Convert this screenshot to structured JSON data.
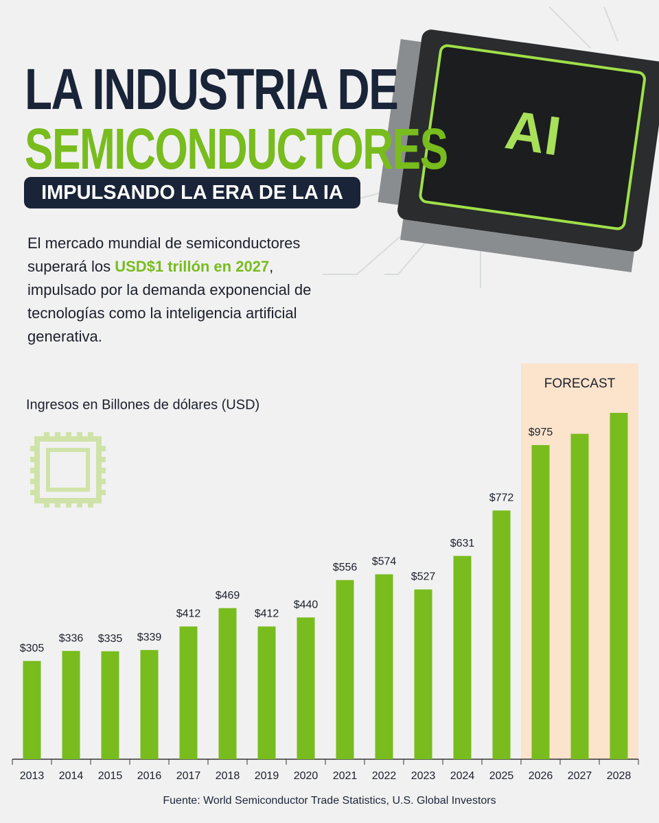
{
  "header": {
    "title_line1": "LA INDUSTRIA DE",
    "title_line2": "SEMICONDUCTORES",
    "subtitle": "IMPULSANDO LA ERA DE LA IA",
    "chip_label": "AI",
    "paragraph": [
      "El mercado mundial de semiconductores superará los ",
      "USD$1 trillón en 2027",
      ", impulsado por la demanda exponencial de tecnologías como la inteligencia artificial generativa."
    ]
  },
  "chart_data": {
    "type": "bar",
    "y_label": "Ingresos en Billones de dólares (USD)",
    "categories": [
      "2013",
      "2014",
      "2015",
      "2016",
      "2017",
      "2018",
      "2019",
      "2020",
      "2021",
      "2022",
      "2023",
      "2024",
      "2025",
      "2026",
      "2027",
      "2028"
    ],
    "values": [
      305,
      336,
      335,
      339,
      412,
      469,
      412,
      440,
      556,
      574,
      527,
      631,
      772,
      975,
      1010,
      1075
    ],
    "value_labels": [
      "$305",
      "$336",
      "$335",
      "$339",
      "$412",
      "$469",
      "$412",
      "$440",
      "$556",
      "$574",
      "$527",
      "$631",
      "$772",
      "$975",
      null,
      null
    ],
    "color": "#78bc1e",
    "forecast": {
      "label": "FORECAST",
      "categories": [
        "2026",
        "2027",
        "2028"
      ],
      "color": "#fbe3cc"
    },
    "source": "Fuente: World Semiconductor Trade Statistics, U.S. Global Investors"
  }
}
